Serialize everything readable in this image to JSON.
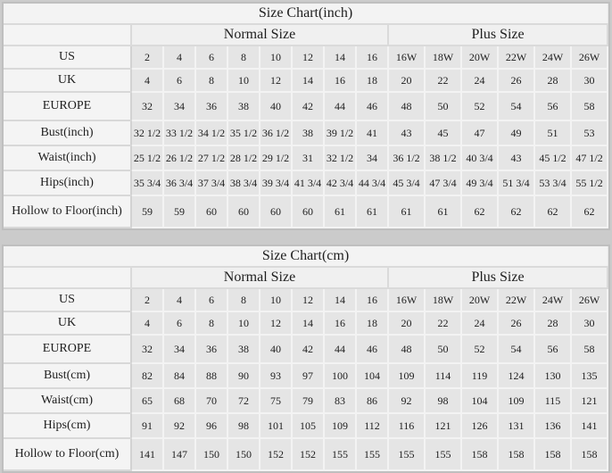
{
  "colors": {
    "page_background": "#cbcbcb",
    "table_border": "#bfbfbf",
    "label_cell_background": "#f4f4f4",
    "data_cell_background": "#e5e5e5",
    "text": "#1e1e1e"
  },
  "chart_data": [
    {
      "type": "table",
      "title": "Size Chart(inch)",
      "column_groups": [
        {
          "label": "Normal Size",
          "span": 8
        },
        {
          "label": "Plus Size",
          "span": 6
        }
      ],
      "rows": [
        {
          "label": "US",
          "normal": [
            "2",
            "4",
            "6",
            "8",
            "10",
            "12",
            "14",
            "16"
          ],
          "plus": [
            "16W",
            "18W",
            "20W",
            "22W",
            "24W",
            "26W"
          ]
        },
        {
          "label": "UK",
          "normal": [
            "4",
            "6",
            "8",
            "10",
            "12",
            "14",
            "16",
            "18"
          ],
          "plus": [
            "20",
            "22",
            "24",
            "26",
            "28",
            "30"
          ]
        },
        {
          "label": "EUROPE",
          "normal": [
            "32",
            "34",
            "36",
            "38",
            "40",
            "42",
            "44",
            "46"
          ],
          "plus": [
            "48",
            "50",
            "52",
            "54",
            "56",
            "58"
          ]
        },
        {
          "label": "Bust(inch)",
          "normal": [
            "32 1/2",
            "33 1/2",
            "34 1/2",
            "35 1/2",
            "36 1/2",
            "38",
            "39 1/2",
            "41"
          ],
          "plus": [
            "43",
            "45",
            "47",
            "49",
            "51",
            "53"
          ]
        },
        {
          "label": "Waist(inch)",
          "normal": [
            "25 1/2",
            "26 1/2",
            "27 1/2",
            "28 1/2",
            "29 1/2",
            "31",
            "32 1/2",
            "34"
          ],
          "plus": [
            "36 1/2",
            "38 1/2",
            "40 3/4",
            "43",
            "45 1/2",
            "47 1/2"
          ]
        },
        {
          "label": "Hips(inch)",
          "normal": [
            "35 3/4",
            "36 3/4",
            "37 3/4",
            "38 3/4",
            "39 3/4",
            "41 3/4",
            "42 3/4",
            "44 3/4"
          ],
          "plus": [
            "45 3/4",
            "47 3/4",
            "49 3/4",
            "51 3/4",
            "53 3/4",
            "55 1/2"
          ]
        },
        {
          "label": "Hollow to Floor(inch)",
          "normal": [
            "59",
            "59",
            "60",
            "60",
            "60",
            "60",
            "61",
            "61"
          ],
          "plus": [
            "61",
            "61",
            "62",
            "62",
            "62",
            "62"
          ]
        }
      ]
    },
    {
      "type": "table",
      "title": "Size Chart(cm)",
      "column_groups": [
        {
          "label": "Normal Size",
          "span": 8
        },
        {
          "label": "Plus Size",
          "span": 6
        }
      ],
      "rows": [
        {
          "label": "US",
          "normal": [
            "2",
            "4",
            "6",
            "8",
            "10",
            "12",
            "14",
            "16"
          ],
          "plus": [
            "16W",
            "18W",
            "20W",
            "22W",
            "24W",
            "26W"
          ]
        },
        {
          "label": "UK",
          "normal": [
            "4",
            "6",
            "8",
            "10",
            "12",
            "14",
            "16",
            "18"
          ],
          "plus": [
            "20",
            "22",
            "24",
            "26",
            "28",
            "30"
          ]
        },
        {
          "label": "EUROPE",
          "normal": [
            "32",
            "34",
            "36",
            "38",
            "40",
            "42",
            "44",
            "46"
          ],
          "plus": [
            "48",
            "50",
            "52",
            "54",
            "56",
            "58"
          ]
        },
        {
          "label": "Bust(cm)",
          "normal": [
            "82",
            "84",
            "88",
            "90",
            "93",
            "97",
            "100",
            "104"
          ],
          "plus": [
            "109",
            "114",
            "119",
            "124",
            "130",
            "135"
          ]
        },
        {
          "label": "Waist(cm)",
          "normal": [
            "65",
            "68",
            "70",
            "72",
            "75",
            "79",
            "83",
            "86"
          ],
          "plus": [
            "92",
            "98",
            "104",
            "109",
            "115",
            "121"
          ]
        },
        {
          "label": "Hips(cm)",
          "normal": [
            "91",
            "92",
            "96",
            "98",
            "101",
            "105",
            "109",
            "112"
          ],
          "plus": [
            "116",
            "121",
            "126",
            "131",
            "136",
            "141"
          ]
        },
        {
          "label": "Hollow to Floor(cm)",
          "normal": [
            "141",
            "147",
            "150",
            "150",
            "152",
            "152",
            "155",
            "155"
          ],
          "plus": [
            "155",
            "155",
            "158",
            "158",
            "158",
            "158"
          ]
        }
      ]
    }
  ]
}
